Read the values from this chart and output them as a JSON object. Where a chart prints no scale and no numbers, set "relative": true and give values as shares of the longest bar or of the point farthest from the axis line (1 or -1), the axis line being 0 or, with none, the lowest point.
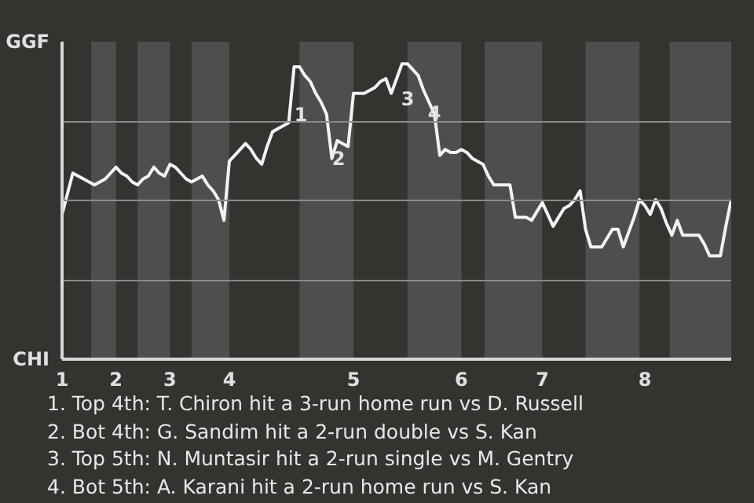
{
  "chart_data": {
    "type": "line",
    "relative": true,
    "categories": [
      "1",
      null,
      null,
      null,
      null,
      null,
      null,
      null,
      null,
      null,
      "2",
      null,
      null,
      null,
      null,
      null,
      null,
      null,
      null,
      null,
      "3",
      null,
      null,
      null,
      null,
      null,
      null,
      null,
      null,
      null,
      null,
      "4",
      null,
      null,
      null,
      null,
      null,
      null,
      null,
      null,
      null,
      null,
      null,
      null,
      null,
      null,
      null,
      null,
      null,
      null,
      null,
      null,
      null,
      null,
      "5",
      null,
      null,
      null,
      null,
      null,
      null,
      null,
      null,
      null,
      null,
      null,
      null,
      null,
      null,
      null,
      null,
      null,
      null,
      null,
      "6",
      null,
      null,
      null,
      null,
      null,
      null,
      null,
      null,
      null,
      null,
      null,
      null,
      null,
      null,
      "7",
      null,
      null,
      null,
      null,
      null,
      null,
      null,
      null,
      null,
      null,
      null,
      null,
      null,
      null,
      null,
      null,
      null,
      null,
      "8",
      null,
      null,
      null,
      null,
      null,
      null,
      null,
      null,
      null,
      null,
      null,
      null,
      null,
      null,
      null,
      null
    ],
    "series": [
      {
        "color": "#f2f2f2",
        "values": [
          0.49,
          0.56,
          0.63,
          0.62,
          0.61,
          0.6,
          0.59,
          0.6,
          0.61,
          0.63,
          0.65,
          0.63,
          0.62,
          0.6,
          0.59,
          0.61,
          0.62,
          0.65,
          0.63,
          0.62,
          0.66,
          0.65,
          0.63,
          0.61,
          0.6,
          0.61,
          0.62,
          0.59,
          0.57,
          0.54,
          0.47,
          0.67,
          0.69,
          0.71,
          0.73,
          0.71,
          0.68,
          0.66,
          0.72,
          0.77,
          0.78,
          0.79,
          0.8,
          0.99,
          0.99,
          0.96,
          0.94,
          0.9,
          0.87,
          0.83,
          0.68,
          0.74,
          0.73,
          0.72,
          0.9,
          0.9,
          0.9,
          0.91,
          0.92,
          0.94,
          0.95,
          0.9,
          0.95,
          1,
          1,
          0.98,
          0.96,
          0.91,
          0.87,
          0.83,
          0.69,
          0.71,
          0.7,
          0.7,
          0.71,
          0.7,
          0.68,
          0.67,
          0.66,
          0.62,
          0.59,
          0.59,
          0.59,
          0.59,
          0.48,
          0.48,
          0.48,
          0.47,
          0.5,
          0.53,
          0.49,
          0.45,
          0.48,
          0.51,
          0.52,
          0.54,
          0.57,
          0.44,
          0.38,
          0.38,
          0.38,
          0.41,
          0.44,
          0.44,
          0.38,
          0.43,
          0.48,
          0.54,
          0.52,
          0.49,
          0.54,
          0.51,
          0.46,
          0.42,
          0.47,
          0.42,
          0.42,
          0.42,
          0.42,
          0.39,
          0.35,
          0.35,
          0.35,
          0.45,
          0.54
        ]
      }
    ],
    "grid": "y",
    "annotations": [
      "GGF",
      "CHI",
      "1",
      "2",
      "3",
      "4",
      "1. Top 4th: T. Chiron hit a 3-run home run vs D. Russell",
      "2. Bot 4th: G. Sandim hit a 2-run double vs S. Kan",
      "3. Top 5th: N. Muntasir hit a 2-run single vs M. Gentry",
      "4. Bot 5th: A. Karani hit a 2-run home run vs S. Kan"
    ]
  }
}
